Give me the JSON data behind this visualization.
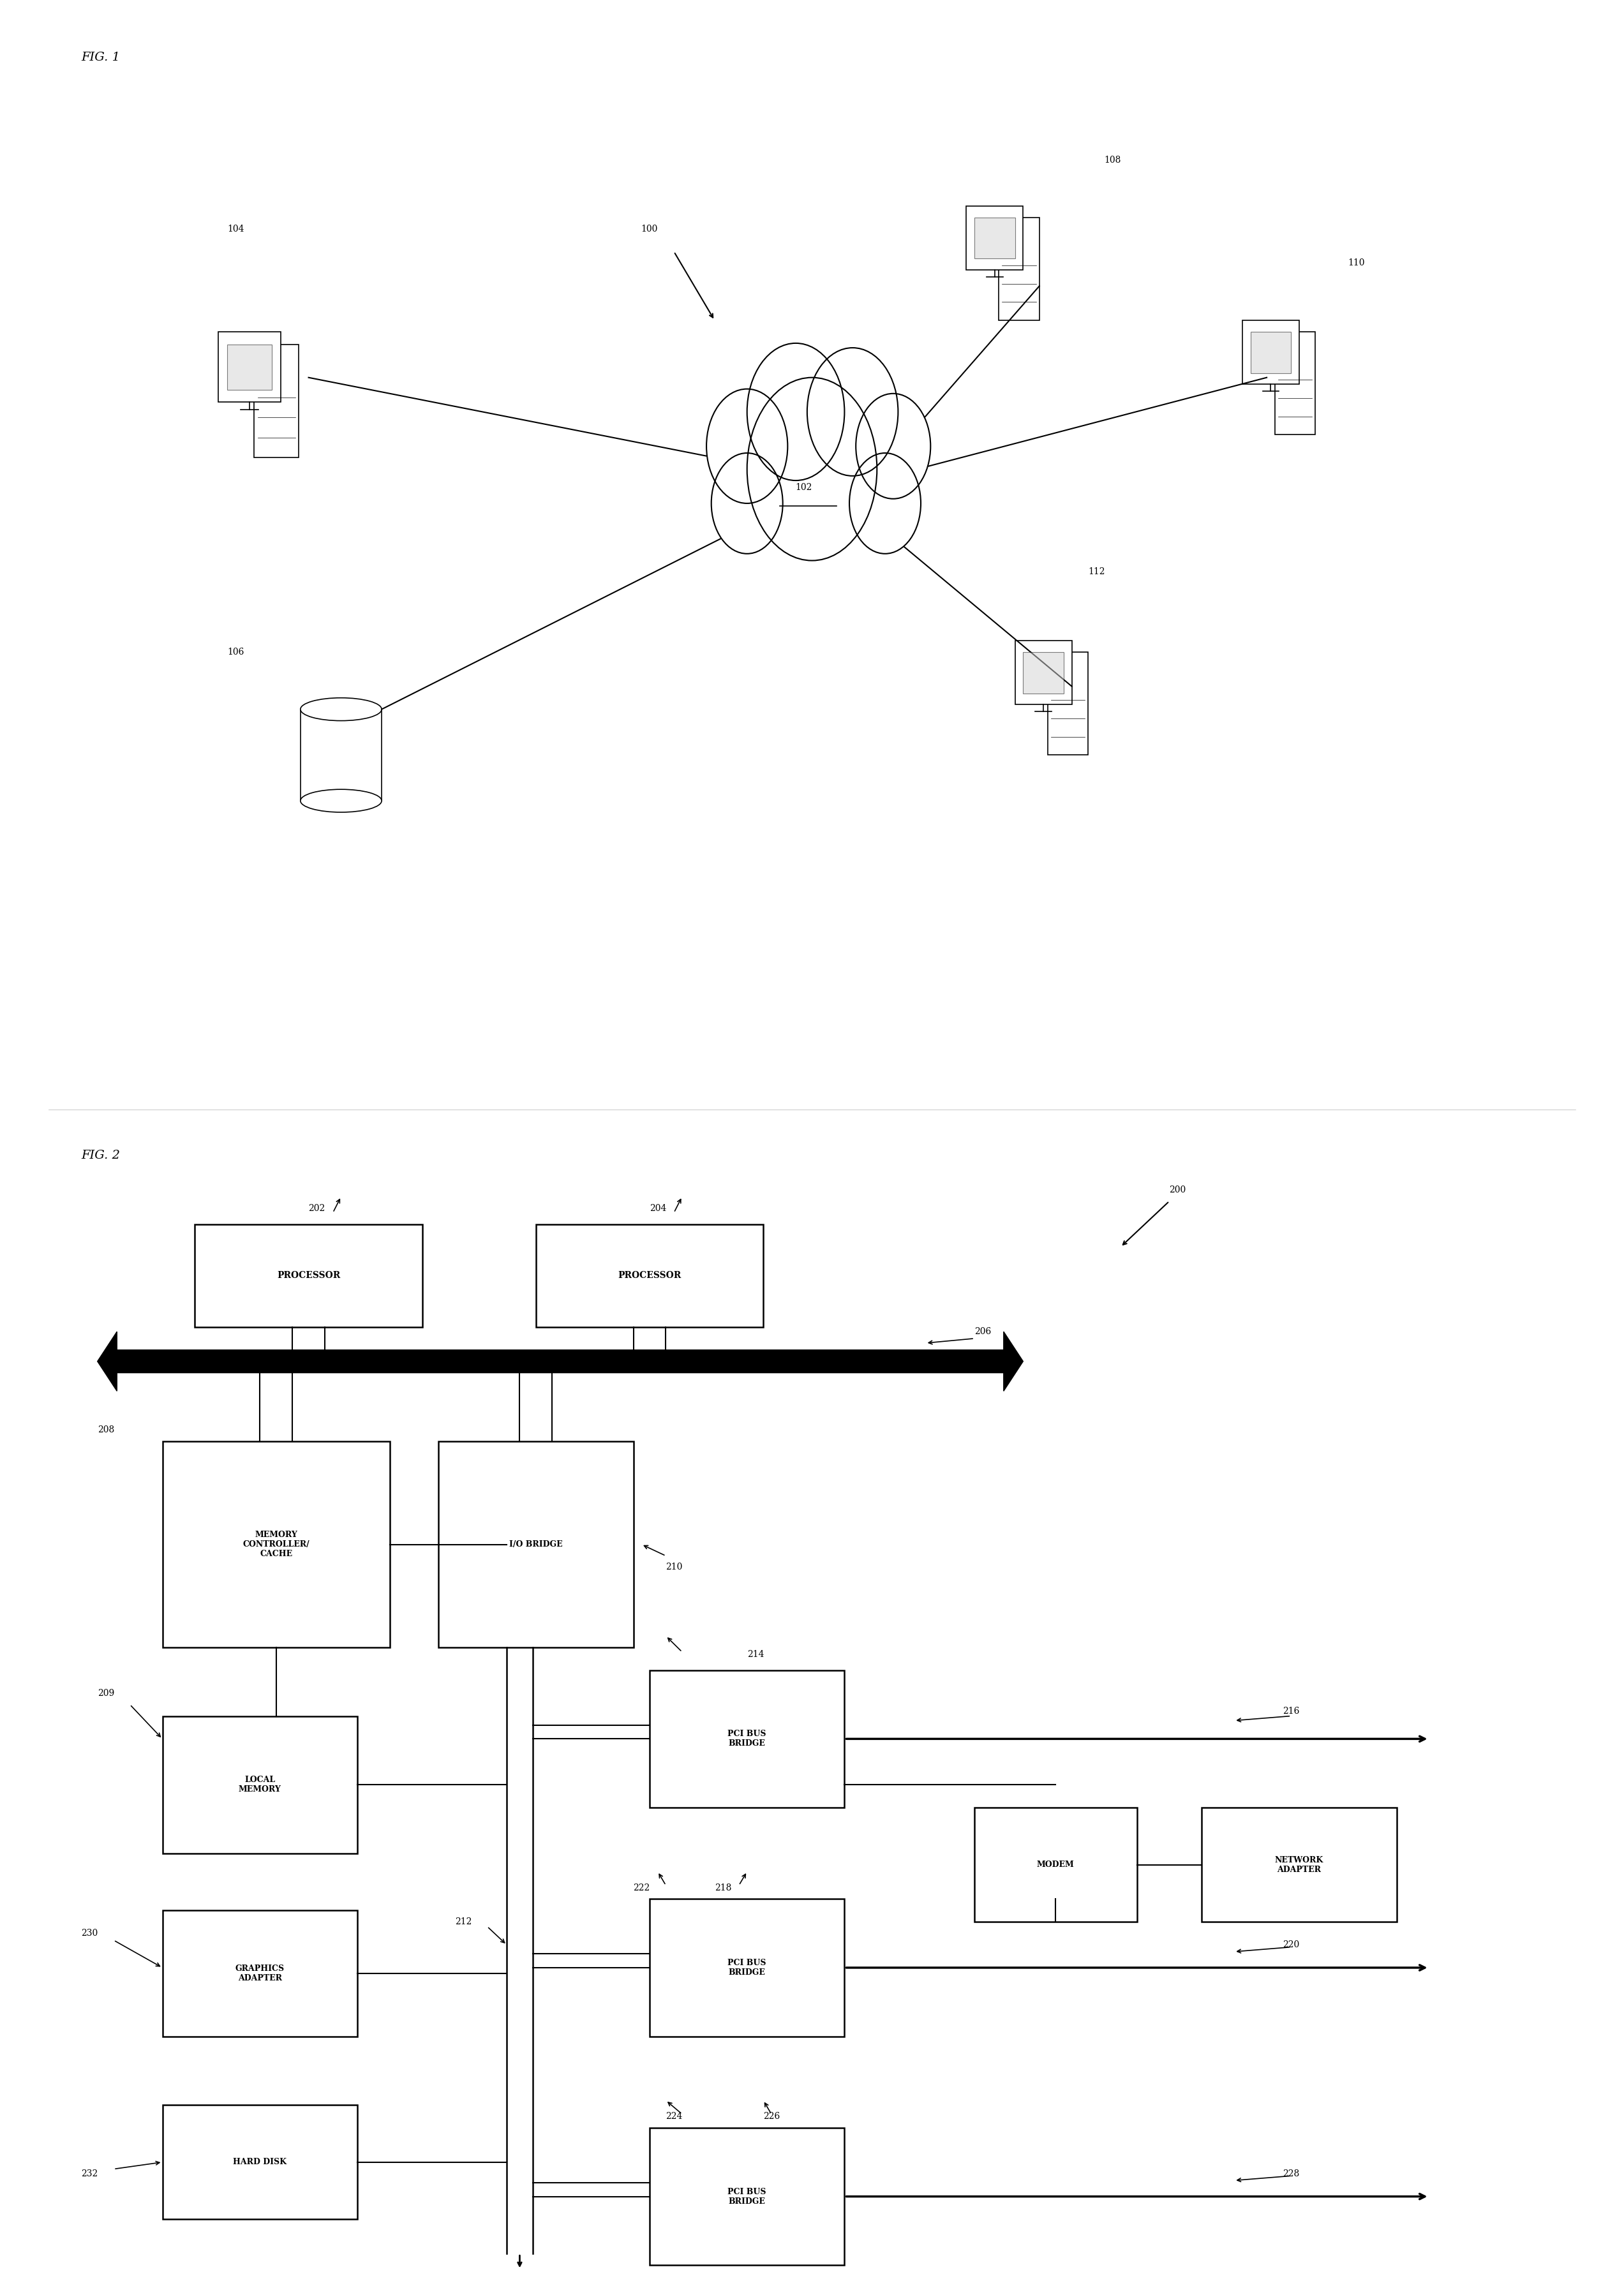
{
  "fig_width": 25.45,
  "fig_height": 35.86,
  "bg_color": "#ffffff",
  "fig1": {
    "title": "FIG. 1",
    "label_100": "100",
    "label_102": "102",
    "label_104": "104",
    "label_106": "106",
    "label_108": "108",
    "label_110": "110",
    "label_112": "112"
  },
  "fig2": {
    "title": "FIG. 2",
    "label_200": "200",
    "label_202": "202",
    "label_204": "204",
    "label_206": "206",
    "label_208": "208",
    "label_209": "209",
    "label_210": "210",
    "label_212": "212",
    "label_214": "214",
    "label_216": "216",
    "label_218": "218",
    "label_220": "220",
    "label_222": "222",
    "label_224": "224",
    "label_226": "226",
    "label_228": "228",
    "label_230": "230",
    "label_232": "232",
    "proc1_text": "PROCESSOR",
    "proc2_text": "PROCESSOR",
    "mem_ctrl_text": "MEMORY\nCONTROLLER/\nCACHE",
    "io_bridge_text": "I/O BRIDGE",
    "local_mem_text": "LOCAL\nMEMORY",
    "pci_bus1_text": "PCI BUS\nBRIDGE",
    "pci_bus2_text": "PCI BUS\nBRIDGE",
    "pci_bus3_text": "PCI BUS\nBRIDGE",
    "modem_text": "MODEM",
    "net_adapter_text": "NETWORK\nADAPTER",
    "graphics_text": "GRAPHICS\nADAPTER",
    "hard_disk_text": "HARD DISK"
  }
}
